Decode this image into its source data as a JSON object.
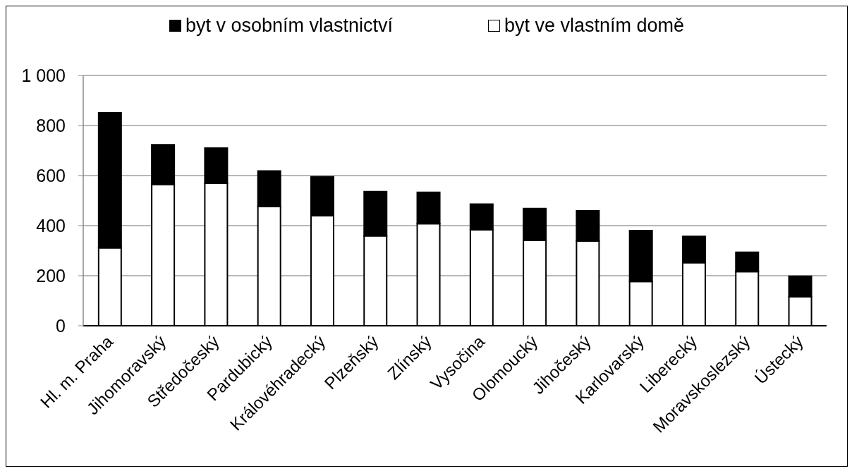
{
  "chart_data": {
    "type": "bar",
    "categories": [
      "Hl. m. Praha",
      "Jihomoravský",
      "Středočeský",
      "Pardubický",
      "Královéhradecký",
      "Plzeňský",
      "Zlínský",
      "Vysočina",
      "Olomoucký",
      "Jihočeský",
      "Karlovarský",
      "Liberecký",
      "Moravskoslezský",
      "Ústecký"
    ],
    "series": [
      {
        "name": "byt ve vlastním domě",
        "color": "#ffffff",
        "values": [
          311,
          565,
          569,
          477,
          440,
          359,
          408,
          384,
          341,
          339,
          177,
          252,
          216,
          116
        ]
      },
      {
        "name": "byt v osobním vlastnictví",
        "color": "#000000",
        "values": [
          540,
          158,
          141,
          141,
          155,
          177,
          125,
          102,
          127,
          120,
          203,
          105,
          78,
          82
        ]
      }
    ],
    "stacked": true,
    "ylim": [
      0,
      1000
    ],
    "yticks": [
      0,
      200,
      400,
      600,
      800,
      {
        "value": 1000,
        "label": "1 000"
      }
    ],
    "grid": "y",
    "legend": "top"
  }
}
